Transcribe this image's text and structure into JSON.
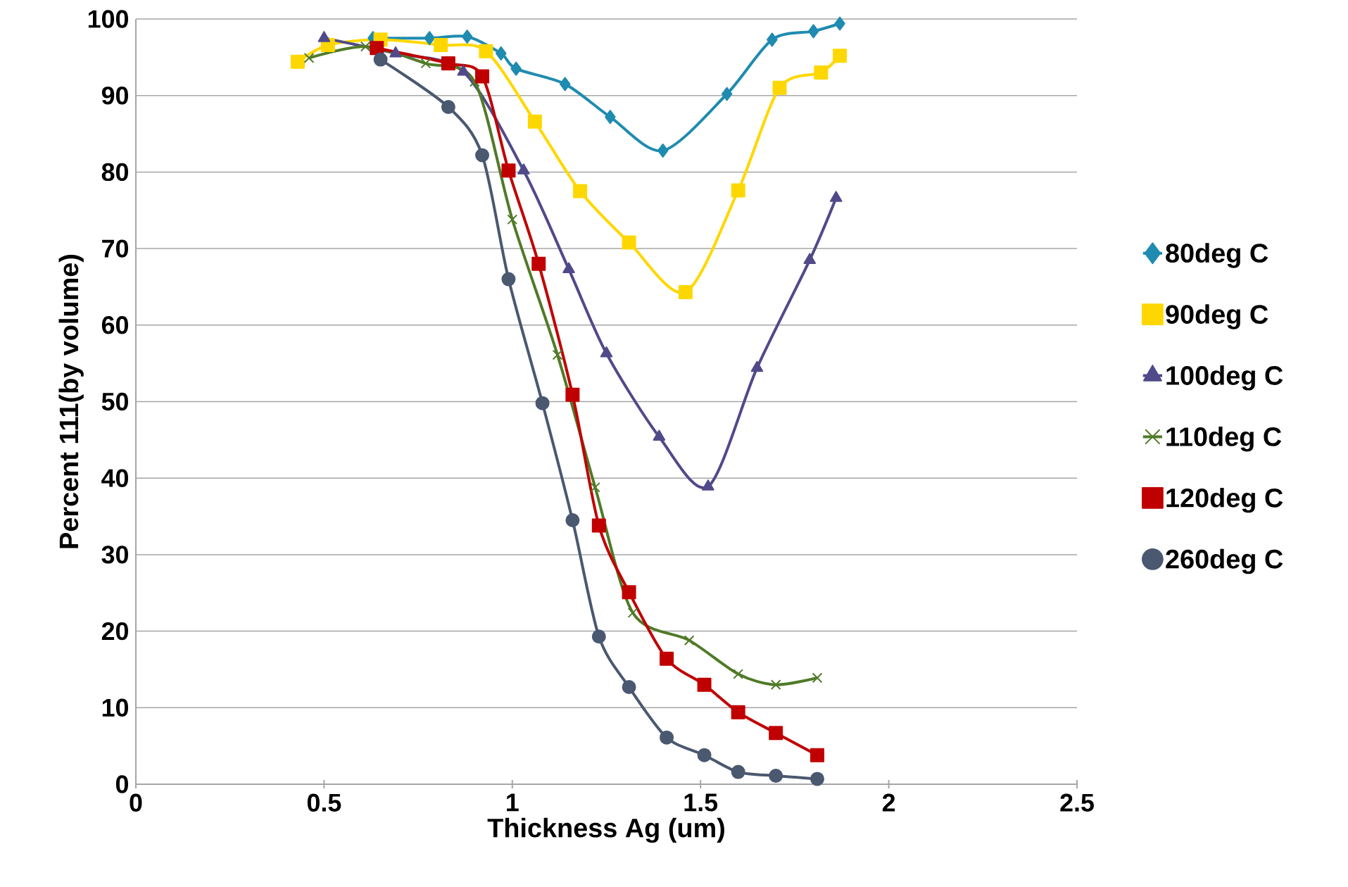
{
  "chart_data": {
    "type": "line",
    "xlabel": "Thickness Ag (um)",
    "ylabel": "Percent 111(by volume)",
    "xlim": [
      0,
      2.5
    ],
    "ylim": [
      0,
      100
    ],
    "xticks": [
      0,
      0.5,
      1,
      1.5,
      2,
      2.5
    ],
    "yticks": [
      0,
      10,
      20,
      30,
      40,
      50,
      60,
      70,
      80,
      90,
      100
    ],
    "grid": "y",
    "legend": "right",
    "series": [
      {
        "name": "80deg C",
        "color": "#1f8bb0",
        "marker": "diamond",
        "x": [
          0.63,
          0.78,
          0.88,
          0.97,
          1.01,
          1.14,
          1.26,
          1.4,
          1.57,
          1.69,
          1.8,
          1.87
        ],
        "values": [
          97.5,
          97.5,
          97.7,
          95.5,
          93.5,
          91.5,
          87.2,
          82.8,
          90.2,
          97.3,
          98.4,
          99.4
        ]
      },
      {
        "name": "90deg C",
        "color": "#ffd700",
        "marker": "square",
        "x": [
          0.43,
          0.51,
          0.65,
          0.81,
          0.93,
          1.06,
          1.18,
          1.31,
          1.46,
          1.6,
          1.71,
          1.82,
          1.87
        ],
        "values": [
          94.4,
          96.6,
          97.3,
          96.6,
          95.8,
          86.6,
          77.5,
          70.8,
          64.3,
          77.6,
          91.0,
          93.0,
          95.2
        ]
      },
      {
        "name": "100deg C",
        "color": "#504a8a",
        "marker": "triangle",
        "x": [
          0.5,
          0.69,
          0.87,
          1.03,
          1.15,
          1.25,
          1.39,
          1.52,
          1.65,
          1.79,
          1.86
        ],
        "values": [
          97.5,
          95.5,
          93.1,
          80.2,
          67.3,
          56.3,
          45.4,
          38.9,
          54.4,
          68.5,
          76.6
        ]
      },
      {
        "name": "110deg C",
        "color": "#507a28",
        "marker": "cross",
        "x": [
          0.46,
          0.61,
          0.77,
          0.9,
          1.0,
          1.12,
          1.22,
          1.32,
          1.47,
          1.6,
          1.7,
          1.81
        ],
        "values": [
          94.9,
          96.4,
          94.2,
          91.8,
          73.8,
          56.1,
          38.8,
          22.4,
          18.8,
          14.4,
          13.0,
          13.9
        ]
      },
      {
        "name": "120deg C",
        "color": "#c00000",
        "marker": "square",
        "x": [
          0.64,
          0.83,
          0.92,
          0.99,
          1.07,
          1.16,
          1.23,
          1.31,
          1.41,
          1.51,
          1.6,
          1.7,
          1.81
        ],
        "values": [
          96.2,
          94.2,
          92.5,
          80.2,
          68.0,
          50.9,
          33.8,
          25.1,
          16.4,
          13.0,
          9.4,
          6.7,
          3.8
        ]
      },
      {
        "name": "260deg C",
        "color": "#4a5870",
        "marker": "circle",
        "x": [
          0.65,
          0.83,
          0.92,
          0.99,
          1.08,
          1.16,
          1.23,
          1.31,
          1.41,
          1.51,
          1.6,
          1.7,
          1.81
        ],
        "values": [
          94.7,
          88.5,
          82.2,
          66.0,
          49.8,
          34.5,
          19.3,
          12.7,
          6.1,
          3.8,
          1.6,
          1.1,
          0.7
        ]
      }
    ]
  }
}
